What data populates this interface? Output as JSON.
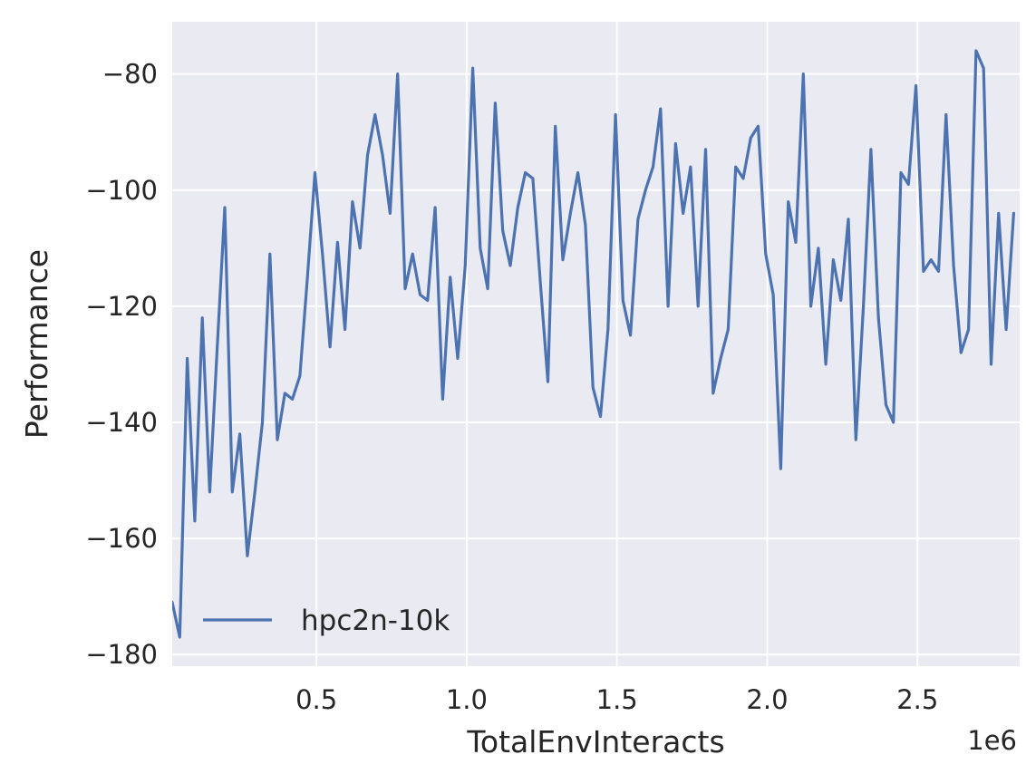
{
  "chart_data": {
    "type": "line",
    "title": "",
    "xlabel": "TotalEnvInteracts",
    "ylabel": "Performance",
    "x_offset_text": "1e6",
    "xlim": [
      0.02,
      2.84
    ],
    "ylim": [
      -182,
      -71
    ],
    "x_ticks": [
      {
        "value": 0.5,
        "label": "0.5"
      },
      {
        "value": 1.0,
        "label": "1.0"
      },
      {
        "value": 1.5,
        "label": "1.5"
      },
      {
        "value": 2.0,
        "label": "2.0"
      },
      {
        "value": 2.5,
        "label": "2.5"
      }
    ],
    "y_ticks": [
      {
        "value": -80,
        "label": "−80"
      },
      {
        "value": -100,
        "label": "−100"
      },
      {
        "value": -120,
        "label": "−120"
      },
      {
        "value": -140,
        "label": "−140"
      },
      {
        "value": -160,
        "label": "−160"
      },
      {
        "value": -180,
        "label": "−180"
      }
    ],
    "grid": true,
    "background_color": "#eaeaf2",
    "grid_color": "#ffffff",
    "legend_position": "lower-left",
    "series": [
      {
        "name": "hpc2n-10k",
        "color": "#4c72b0",
        "points": [
          [
            0.02,
            -171
          ],
          [
            0.045,
            -177
          ],
          [
            0.07,
            -129
          ],
          [
            0.095,
            -157
          ],
          [
            0.12,
            -122
          ],
          [
            0.145,
            -152
          ],
          [
            0.17,
            -127
          ],
          [
            0.195,
            -103
          ],
          [
            0.22,
            -152
          ],
          [
            0.245,
            -142
          ],
          [
            0.27,
            -163
          ],
          [
            0.295,
            -152
          ],
          [
            0.32,
            -140
          ],
          [
            0.345,
            -111
          ],
          [
            0.37,
            -143
          ],
          [
            0.395,
            -135
          ],
          [
            0.42,
            -136
          ],
          [
            0.445,
            -132
          ],
          [
            0.47,
            -115
          ],
          [
            0.495,
            -97
          ],
          [
            0.52,
            -111
          ],
          [
            0.545,
            -127
          ],
          [
            0.57,
            -109
          ],
          [
            0.595,
            -124
          ],
          [
            0.62,
            -102
          ],
          [
            0.645,
            -110
          ],
          [
            0.67,
            -94
          ],
          [
            0.695,
            -87
          ],
          [
            0.72,
            -94
          ],
          [
            0.745,
            -104
          ],
          [
            0.77,
            -80
          ],
          [
            0.795,
            -117
          ],
          [
            0.82,
            -111
          ],
          [
            0.845,
            -118
          ],
          [
            0.87,
            -119
          ],
          [
            0.895,
            -103
          ],
          [
            0.92,
            -136
          ],
          [
            0.945,
            -115
          ],
          [
            0.97,
            -129
          ],
          [
            0.995,
            -113
          ],
          [
            1.02,
            -79
          ],
          [
            1.045,
            -110
          ],
          [
            1.07,
            -117
          ],
          [
            1.095,
            -85
          ],
          [
            1.12,
            -107
          ],
          [
            1.145,
            -113
          ],
          [
            1.17,
            -103
          ],
          [
            1.195,
            -97
          ],
          [
            1.22,
            -98
          ],
          [
            1.245,
            -116
          ],
          [
            1.27,
            -133
          ],
          [
            1.295,
            -89
          ],
          [
            1.32,
            -112
          ],
          [
            1.345,
            -104
          ],
          [
            1.37,
            -97
          ],
          [
            1.395,
            -106
          ],
          [
            1.42,
            -134
          ],
          [
            1.445,
            -139
          ],
          [
            1.47,
            -124
          ],
          [
            1.495,
            -87
          ],
          [
            1.52,
            -119
          ],
          [
            1.545,
            -125
          ],
          [
            1.57,
            -105
          ],
          [
            1.595,
            -100
          ],
          [
            1.62,
            -96
          ],
          [
            1.645,
            -86
          ],
          [
            1.67,
            -120
          ],
          [
            1.695,
            -92
          ],
          [
            1.72,
            -104
          ],
          [
            1.745,
            -96
          ],
          [
            1.77,
            -120
          ],
          [
            1.795,
            -93
          ],
          [
            1.82,
            -135
          ],
          [
            1.845,
            -129
          ],
          [
            1.87,
            -124
          ],
          [
            1.895,
            -96
          ],
          [
            1.92,
            -98
          ],
          [
            1.945,
            -91
          ],
          [
            1.97,
            -89
          ],
          [
            1.995,
            -111
          ],
          [
            2.02,
            -118
          ],
          [
            2.045,
            -148
          ],
          [
            2.07,
            -102
          ],
          [
            2.095,
            -109
          ],
          [
            2.12,
            -80
          ],
          [
            2.145,
            -120
          ],
          [
            2.17,
            -110
          ],
          [
            2.195,
            -130
          ],
          [
            2.22,
            -112
          ],
          [
            2.245,
            -119
          ],
          [
            2.27,
            -105
          ],
          [
            2.295,
            -143
          ],
          [
            2.32,
            -120
          ],
          [
            2.345,
            -93
          ],
          [
            2.37,
            -122
          ],
          [
            2.395,
            -137
          ],
          [
            2.42,
            -140
          ],
          [
            2.445,
            -97
          ],
          [
            2.47,
            -99
          ],
          [
            2.495,
            -82
          ],
          [
            2.52,
            -114
          ],
          [
            2.545,
            -112
          ],
          [
            2.57,
            -114
          ],
          [
            2.595,
            -87
          ],
          [
            2.62,
            -113
          ],
          [
            2.645,
            -128
          ],
          [
            2.67,
            -124
          ],
          [
            2.695,
            -76
          ],
          [
            2.72,
            -79
          ],
          [
            2.745,
            -130
          ],
          [
            2.77,
            -104
          ],
          [
            2.795,
            -124
          ],
          [
            2.82,
            -104
          ]
        ]
      }
    ]
  }
}
